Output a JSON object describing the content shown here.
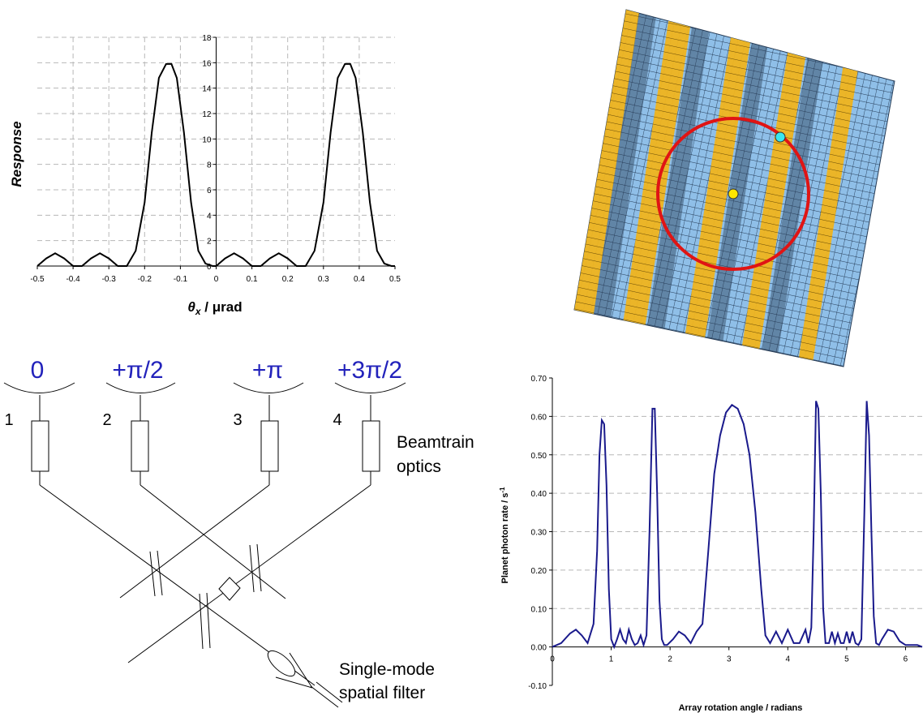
{
  "figure": {
    "beam_phases": [
      "0",
      "+π/2",
      "+π",
      "+3π/2"
    ],
    "beam_numbers": [
      "1",
      "2",
      "3",
      "4"
    ],
    "beamtrain_label": [
      "Beamtrain",
      "optics"
    ],
    "filter_label": [
      "Single-mode",
      "spatial filter"
    ]
  },
  "chart_data": [
    {
      "type": "line",
      "ylabel": "Response",
      "xlabel": "θx / μrad",
      "xlim": [
        -0.5,
        0.5
      ],
      "ylim": [
        0,
        18
      ],
      "xticks": [
        -0.5,
        -0.4,
        -0.3,
        -0.2,
        -0.1,
        0,
        0.1,
        0.2,
        0.3,
        0.4,
        0.5
      ],
      "xtick_labels": [
        "-0.5",
        "-0.4",
        "-0.3",
        "-0.2",
        "-0.1",
        "0",
        "0.1",
        "0.2",
        "0.3",
        "0.4",
        "0.5"
      ],
      "yticks": [
        0,
        2,
        4,
        6,
        8,
        10,
        12,
        14,
        16,
        18
      ],
      "ytick_labels": [
        "0",
        "2",
        "4",
        "6",
        "8",
        "10",
        "12",
        "14",
        "16",
        "18"
      ],
      "grid": true,
      "color": "#000000",
      "series": [
        {
          "x": [
            -0.5,
            -0.475,
            -0.45,
            -0.425,
            -0.4,
            -0.375,
            -0.35,
            -0.325,
            -0.3,
            -0.275,
            -0.25,
            -0.225,
            -0.2,
            -0.18,
            -0.16,
            -0.14,
            -0.125,
            -0.11,
            -0.09,
            -0.07,
            -0.05,
            -0.03,
            -0.01,
            0,
            0.025,
            0.05,
            0.075,
            0.1,
            0.125,
            0.15,
            0.175,
            0.2,
            0.225,
            0.25,
            0.275,
            0.3,
            0.32,
            0.34,
            0.36,
            0.375,
            0.39,
            0.41,
            0.43,
            0.45,
            0.47,
            0.49,
            0.5
          ],
          "y": [
            0,
            0.6,
            1.0,
            0.6,
            0,
            0,
            0.6,
            1.0,
            0.6,
            0,
            0,
            1.2,
            5.0,
            10.5,
            14.8,
            15.9,
            15.9,
            14.8,
            10.5,
            5.0,
            1.2,
            0.2,
            0,
            0,
            0.6,
            1.0,
            0.6,
            0,
            0,
            0.6,
            1.0,
            0.6,
            0,
            0,
            1.2,
            5.0,
            10.5,
            14.8,
            15.9,
            15.9,
            14.8,
            10.5,
            5.0,
            1.2,
            0.2,
            0,
            0
          ]
        }
      ]
    },
    {
      "type": "line",
      "ylabel": "Planet photon rate / s",
      "ylabel_superscript": "-1",
      "xlabel": "Array rotation angle / radians",
      "xlim": [
        0,
        6.283
      ],
      "ylim": [
        -0.1,
        0.7
      ],
      "xticks": [
        0,
        1,
        2,
        3,
        4,
        5,
        6
      ],
      "xtick_labels": [
        "0",
        "1",
        "2",
        "3",
        "4",
        "5",
        "6"
      ],
      "yticks": [
        -0.1,
        0,
        0.1,
        0.2,
        0.3,
        0.4,
        0.5,
        0.6,
        0.7
      ],
      "ytick_labels": [
        "-0.10",
        "0.00",
        "0.10",
        "0.20",
        "0.30",
        "0.40",
        "0.50",
        "0.60",
        "0.70"
      ],
      "grid": true,
      "color": "#1a1a8c",
      "series": [
        {
          "x": [
            0,
            0.15,
            0.3,
            0.4,
            0.5,
            0.6,
            0.7,
            0.76,
            0.8,
            0.84,
            0.88,
            0.92,
            0.96,
            1.0,
            1.05,
            1.1,
            1.15,
            1.2,
            1.25,
            1.3,
            1.35,
            1.4,
            1.45,
            1.5,
            1.55,
            1.6,
            1.65,
            1.7,
            1.74,
            1.78,
            1.82,
            1.86,
            1.9,
            1.95,
            2.05,
            2.15,
            2.25,
            2.35,
            2.45,
            2.55,
            2.65,
            2.75,
            2.85,
            2.95,
            3.05,
            3.15,
            3.25,
            3.35,
            3.45,
            3.55,
            3.62,
            3.7,
            3.8,
            3.9,
            4.0,
            4.1,
            4.2,
            4.3,
            4.35,
            4.4,
            4.44,
            4.48,
            4.52,
            4.56,
            4.6,
            4.64,
            4.7,
            4.75,
            4.8,
            4.85,
            4.9,
            4.95,
            5.0,
            5.05,
            5.1,
            5.15,
            5.2,
            5.25,
            5.3,
            5.34,
            5.38,
            5.42,
            5.46,
            5.5,
            5.55,
            5.6,
            5.7,
            5.8,
            5.9,
            6.0,
            6.1,
            6.2,
            6.283
          ],
          "y": [
            0,
            0.01,
            0.035,
            0.045,
            0.03,
            0.01,
            0.06,
            0.25,
            0.5,
            0.59,
            0.58,
            0.42,
            0.15,
            0.02,
            0,
            0.02,
            0.045,
            0.02,
            0.01,
            0.045,
            0.02,
            0.005,
            0.01,
            0.03,
            0.005,
            0.03,
            0.3,
            0.62,
            0.62,
            0.4,
            0.12,
            0.02,
            0.005,
            0.005,
            0.02,
            0.04,
            0.03,
            0.01,
            0.04,
            0.06,
            0.25,
            0.45,
            0.55,
            0.61,
            0.63,
            0.62,
            0.58,
            0.5,
            0.35,
            0.15,
            0.03,
            0.01,
            0.04,
            0.01,
            0.045,
            0.01,
            0.01,
            0.045,
            0.01,
            0.05,
            0.3,
            0.64,
            0.62,
            0.4,
            0.1,
            0.01,
            0.01,
            0.04,
            0.01,
            0.035,
            0.01,
            0.01,
            0.04,
            0.01,
            0.04,
            0.01,
            0.005,
            0.02,
            0.35,
            0.64,
            0.55,
            0.3,
            0.08,
            0.01,
            0.005,
            0.02,
            0.045,
            0.04,
            0.015,
            0.005,
            0.005,
            0.005,
            0.0
          ]
        }
      ]
    }
  ]
}
